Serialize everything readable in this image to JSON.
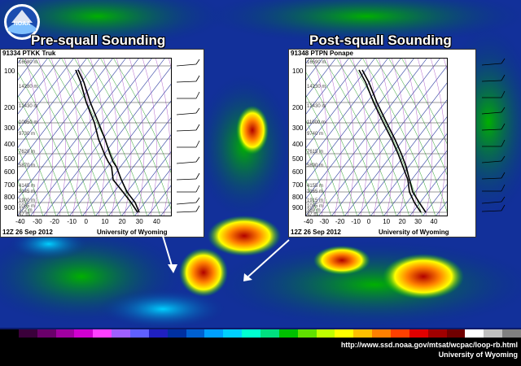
{
  "logo_text": "NOAA",
  "pre": {
    "heading": "Pre-squall Sounding",
    "station": "91334 PTKK Truk",
    "date": "12Z 26 Sep 2012",
    "credit": "University of Wyoming",
    "pressure_labels": [
      "100",
      "200",
      "300",
      "400",
      "500",
      "600",
      "700",
      "800",
      "900"
    ],
    "height_labels": [
      "16580 m",
      "14280 m",
      "12430 m",
      "10950 m",
      "9730 m",
      "7620 m",
      "5870 m",
      "4145 m",
      "3145 m",
      "1900 m",
      "1085 m",
      "372 m",
      "47 m"
    ],
    "temp_ticks": [
      "-40",
      "-30",
      "-20",
      "-10",
      "0",
      "10",
      "20",
      "30",
      "40"
    ]
  },
  "post": {
    "heading": "Post-squall Sounding",
    "station": "91348 PTPN Ponape",
    "date": "12Z 26 Sep 2012",
    "credit": "University of Wyoming",
    "pressure_labels": [
      "100",
      "200",
      "300",
      "400",
      "500",
      "600",
      "700",
      "800",
      "900"
    ],
    "height_labels": [
      "16590 m",
      "14230 m",
      "12430 m",
      "11000 m",
      "9740 m",
      "7615 m",
      "5890 m",
      "4155 m",
      "3165 m",
      "1915 m",
      "1095 m",
      "389 m",
      "47 m"
    ],
    "temp_ticks": [
      "-40",
      "-30",
      "-20",
      "-10",
      "0",
      "10",
      "20",
      "30",
      "40"
    ]
  },
  "footer": {
    "url": "http://www.ssd.noaa.gov/mtsat/wcpac/loop-rb.html",
    "credit": "University of Wyoming"
  },
  "colors": {
    "colorbar": [
      "#000000",
      "#3a003a",
      "#6a006a",
      "#a000a0",
      "#d000d0",
      "#ff40ff",
      "#a060ff",
      "#6060ff",
      "#2020c0",
      "#0030a0",
      "#0060d0",
      "#00a0ff",
      "#00d0ff",
      "#00ffd0",
      "#00e080",
      "#00c000",
      "#60e000",
      "#c0ff00",
      "#ffff00",
      "#ffc000",
      "#ff8000",
      "#ff4000",
      "#e00000",
      "#a00000",
      "#700000",
      "#ffffff",
      "#c0c0c0",
      "#808080"
    ]
  }
}
